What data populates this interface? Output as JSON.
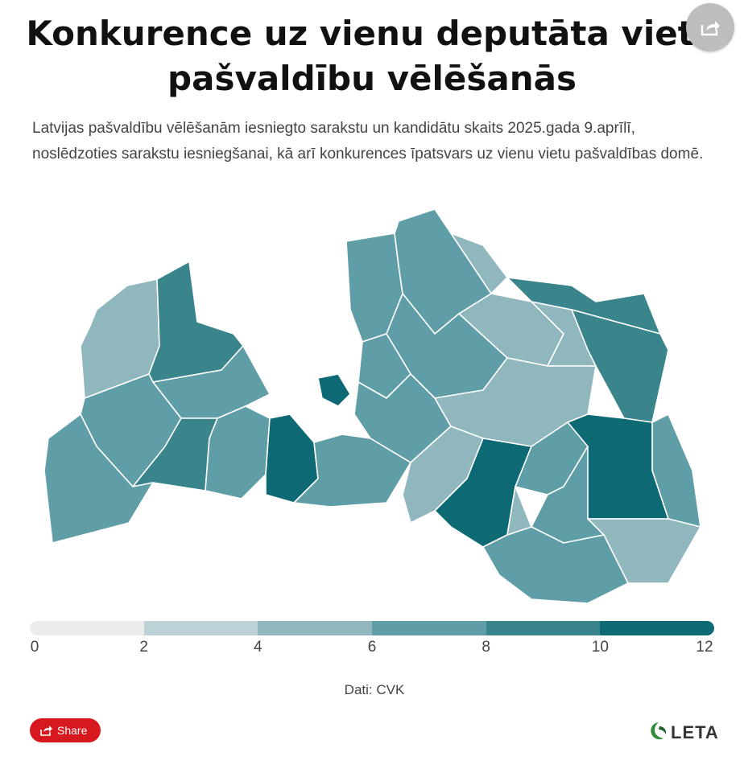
{
  "header": {
    "title_line1": "Konkurence uz vienu deputāta vietu",
    "title_line2": "pašvaldību vēlēšanās",
    "subtitle": "Latvijas pašvaldību vēlēšanām iesniegto sarakstu un kandidātu skaits 2025.gada 9.aprīlī, noslēdzoties sarakstu iesniegšanai, kā arī konkurences īpatsvars uz vienu vietu pašvaldības domē."
  },
  "icons": {
    "top_share": "share-arrow-icon",
    "button_share": "share-box-icon",
    "logo_mark": "leta-leaf-icon"
  },
  "legend": {
    "ticks": [
      "0",
      "2",
      "4",
      "6",
      "8",
      "10",
      "12"
    ],
    "bins": [
      {
        "from": 0,
        "to": 2,
        "color": "#ececec"
      },
      {
        "from": 2,
        "to": 4,
        "color": "#bcd2d6"
      },
      {
        "from": 4,
        "to": 6,
        "color": "#90b7be"
      },
      {
        "from": 6,
        "to": 8,
        "color": "#5f9ea6"
      },
      {
        "from": 8,
        "to": 10,
        "color": "#3a848c"
      },
      {
        "from": 10,
        "to": 12,
        "color": "#0d6a74"
      }
    ]
  },
  "colors": {
    "outline": "#ffffff",
    "share_button": "#d8181f",
    "logo_green": "#2e8b3a"
  },
  "map_data": {
    "regions": [
      {
        "id": "ventspils-nov",
        "bin": 2
      },
      {
        "id": "talsi",
        "bin": 4
      },
      {
        "id": "kuldiga",
        "bin": 3
      },
      {
        "id": "tukums",
        "bin": 3
      },
      {
        "id": "saldus",
        "bin": 4
      },
      {
        "id": "dobele",
        "bin": 3
      },
      {
        "id": "dienvidkurzeme",
        "bin": 3
      },
      {
        "id": "limbazi",
        "bin": 3
      },
      {
        "id": "valmiera",
        "bin": 3
      },
      {
        "id": "smiltene",
        "bin": 2
      },
      {
        "id": "valka",
        "bin": 2
      },
      {
        "id": "gulbene",
        "bin": 2
      },
      {
        "id": "aluksne",
        "bin": 4
      },
      {
        "id": "balvi",
        "bin": 4
      },
      {
        "id": "cesis",
        "bin": 3
      },
      {
        "id": "sigulda",
        "bin": 3
      },
      {
        "id": "ogre",
        "bin": 3
      },
      {
        "id": "madona",
        "bin": 2
      },
      {
        "id": "ludza",
        "bin": 3
      },
      {
        "id": "rezekne",
        "bin": 5
      },
      {
        "id": "jelgava",
        "bin": 5
      },
      {
        "id": "riga",
        "bin": 5
      },
      {
        "id": "bauska",
        "bin": 3
      },
      {
        "id": "aizkraukle",
        "bin": 2
      },
      {
        "id": "jekabpils",
        "bin": 5
      },
      {
        "id": "livani",
        "bin": 3
      },
      {
        "id": "preili",
        "bin": 3
      },
      {
        "id": "kraslava",
        "bin": 2
      },
      {
        "id": "augsdaugava",
        "bin": 3
      },
      {
        "id": "varaklani",
        "bin": 2
      }
    ]
  },
  "footer": {
    "source": "Dati: CVK",
    "share_label": "Share",
    "logo_text": "LETA"
  }
}
